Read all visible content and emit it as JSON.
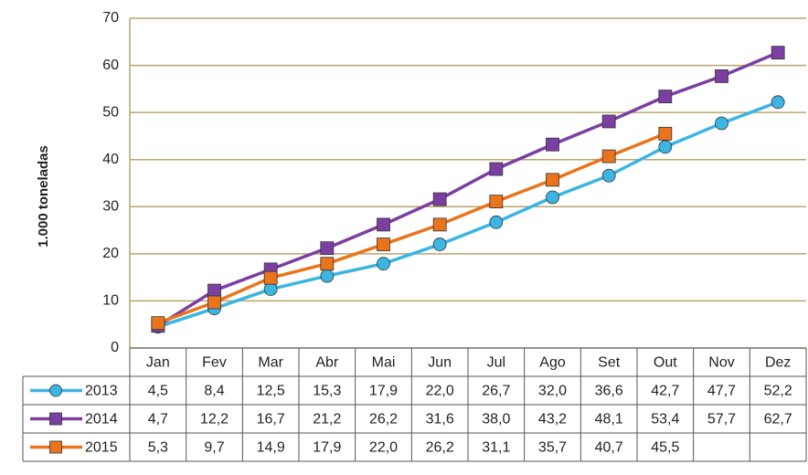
{
  "chart_data": {
    "type": "line",
    "y_label": "1.000 toneladas",
    "categories": [
      "Jan",
      "Fev",
      "Mar",
      "Abr",
      "Mai",
      "Jun",
      "Jul",
      "Ago",
      "Set",
      "Out",
      "Nov",
      "Dez"
    ],
    "series": [
      {
        "name": "2013",
        "color": "#3bb5e2",
        "marker": "circle",
        "values": [
          4.5,
          8.4,
          12.5,
          15.3,
          17.9,
          22.0,
          26.7,
          32.0,
          36.6,
          42.7,
          47.7,
          52.2
        ],
        "value_labels": [
          "4,5",
          "8,4",
          "12,5",
          "15,3",
          "17,9",
          "22,0",
          "26,7",
          "32,0",
          "36,6",
          "42,7",
          "47,7",
          "52,2"
        ]
      },
      {
        "name": "2014",
        "color": "#7b3fa2",
        "marker": "square",
        "values": [
          4.7,
          12.2,
          16.7,
          21.2,
          26.2,
          31.6,
          38.0,
          43.2,
          48.1,
          53.4,
          57.7,
          62.7
        ],
        "value_labels": [
          "4,7",
          "12,2",
          "16,7",
          "21,2",
          "26,2",
          "31,6",
          "38,0",
          "43,2",
          "48,1",
          "53,4",
          "57,7",
          "62,7"
        ]
      },
      {
        "name": "2015",
        "color": "#ea741c",
        "marker": "square",
        "values": [
          5.3,
          9.7,
          14.9,
          17.9,
          22.0,
          26.2,
          31.1,
          35.7,
          40.7,
          45.5,
          null,
          null
        ],
        "value_labels": [
          "5,3",
          "9,7",
          "14,9",
          "17,9",
          "22,0",
          "26,2",
          "31,1",
          "35,7",
          "40,7",
          "45,5",
          null,
          null
        ]
      }
    ],
    "ylim": [
      0,
      70
    ],
    "yticks": [
      0,
      10,
      20,
      30,
      40,
      50,
      60,
      70
    ],
    "grid": true,
    "grid_color": "#b8a66e"
  }
}
